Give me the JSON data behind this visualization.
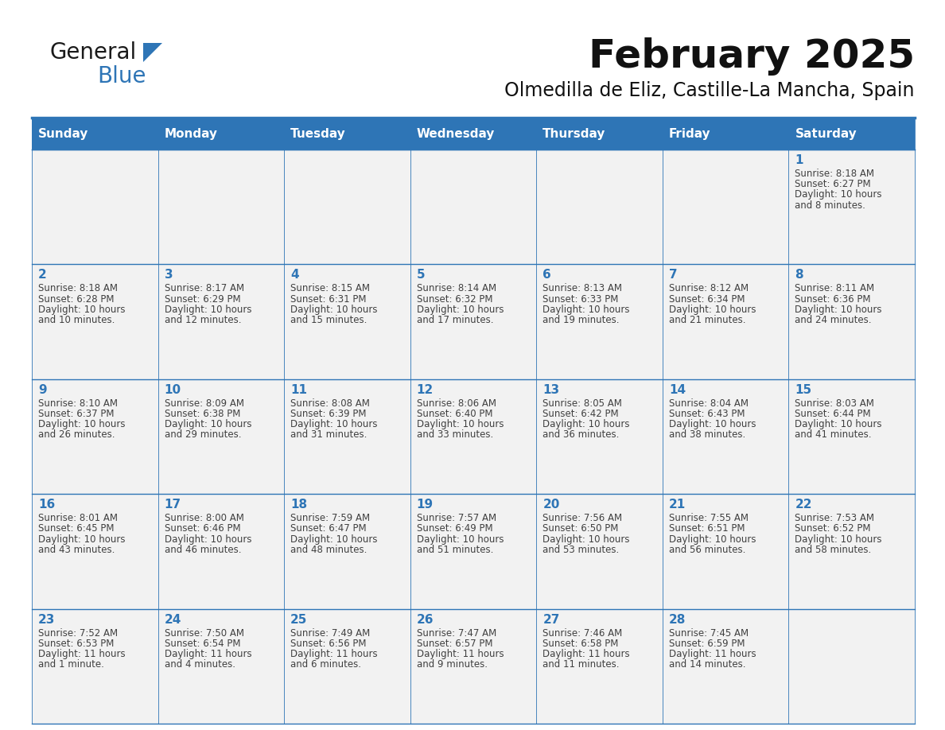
{
  "title": "February 2025",
  "subtitle": "Olmedilla de Eliz, Castille-La Mancha, Spain",
  "header_bg": "#2E75B6",
  "header_text_color": "#FFFFFF",
  "cell_bg": "#F2F2F2",
  "day_number_color": "#2E75B6",
  "text_color": "#404040",
  "line_color": "#2E75B6",
  "days_of_week": [
    "Sunday",
    "Monday",
    "Tuesday",
    "Wednesday",
    "Thursday",
    "Friday",
    "Saturday"
  ],
  "weeks": [
    [
      {
        "day": null,
        "sunrise": null,
        "sunset": null,
        "daylight_line1": null,
        "daylight_line2": null
      },
      {
        "day": null,
        "sunrise": null,
        "sunset": null,
        "daylight_line1": null,
        "daylight_line2": null
      },
      {
        "day": null,
        "sunrise": null,
        "sunset": null,
        "daylight_line1": null,
        "daylight_line2": null
      },
      {
        "day": null,
        "sunrise": null,
        "sunset": null,
        "daylight_line1": null,
        "daylight_line2": null
      },
      {
        "day": null,
        "sunrise": null,
        "sunset": null,
        "daylight_line1": null,
        "daylight_line2": null
      },
      {
        "day": null,
        "sunrise": null,
        "sunset": null,
        "daylight_line1": null,
        "daylight_line2": null
      },
      {
        "day": 1,
        "sunrise": "8:18 AM",
        "sunset": "6:27 PM",
        "daylight_line1": "10 hours",
        "daylight_line2": "and 8 minutes."
      }
    ],
    [
      {
        "day": 2,
        "sunrise": "8:18 AM",
        "sunset": "6:28 PM",
        "daylight_line1": "10 hours",
        "daylight_line2": "and 10 minutes."
      },
      {
        "day": 3,
        "sunrise": "8:17 AM",
        "sunset": "6:29 PM",
        "daylight_line1": "10 hours",
        "daylight_line2": "and 12 minutes."
      },
      {
        "day": 4,
        "sunrise": "8:15 AM",
        "sunset": "6:31 PM",
        "daylight_line1": "10 hours",
        "daylight_line2": "and 15 minutes."
      },
      {
        "day": 5,
        "sunrise": "8:14 AM",
        "sunset": "6:32 PM",
        "daylight_line1": "10 hours",
        "daylight_line2": "and 17 minutes."
      },
      {
        "day": 6,
        "sunrise": "8:13 AM",
        "sunset": "6:33 PM",
        "daylight_line1": "10 hours",
        "daylight_line2": "and 19 minutes."
      },
      {
        "day": 7,
        "sunrise": "8:12 AM",
        "sunset": "6:34 PM",
        "daylight_line1": "10 hours",
        "daylight_line2": "and 21 minutes."
      },
      {
        "day": 8,
        "sunrise": "8:11 AM",
        "sunset": "6:36 PM",
        "daylight_line1": "10 hours",
        "daylight_line2": "and 24 minutes."
      }
    ],
    [
      {
        "day": 9,
        "sunrise": "8:10 AM",
        "sunset": "6:37 PM",
        "daylight_line1": "10 hours",
        "daylight_line2": "and 26 minutes."
      },
      {
        "day": 10,
        "sunrise": "8:09 AM",
        "sunset": "6:38 PM",
        "daylight_line1": "10 hours",
        "daylight_line2": "and 29 minutes."
      },
      {
        "day": 11,
        "sunrise": "8:08 AM",
        "sunset": "6:39 PM",
        "daylight_line1": "10 hours",
        "daylight_line2": "and 31 minutes."
      },
      {
        "day": 12,
        "sunrise": "8:06 AM",
        "sunset": "6:40 PM",
        "daylight_line1": "10 hours",
        "daylight_line2": "and 33 minutes."
      },
      {
        "day": 13,
        "sunrise": "8:05 AM",
        "sunset": "6:42 PM",
        "daylight_line1": "10 hours",
        "daylight_line2": "and 36 minutes."
      },
      {
        "day": 14,
        "sunrise": "8:04 AM",
        "sunset": "6:43 PM",
        "daylight_line1": "10 hours",
        "daylight_line2": "and 38 minutes."
      },
      {
        "day": 15,
        "sunrise": "8:03 AM",
        "sunset": "6:44 PM",
        "daylight_line1": "10 hours",
        "daylight_line2": "and 41 minutes."
      }
    ],
    [
      {
        "day": 16,
        "sunrise": "8:01 AM",
        "sunset": "6:45 PM",
        "daylight_line1": "10 hours",
        "daylight_line2": "and 43 minutes."
      },
      {
        "day": 17,
        "sunrise": "8:00 AM",
        "sunset": "6:46 PM",
        "daylight_line1": "10 hours",
        "daylight_line2": "and 46 minutes."
      },
      {
        "day": 18,
        "sunrise": "7:59 AM",
        "sunset": "6:47 PM",
        "daylight_line1": "10 hours",
        "daylight_line2": "and 48 minutes."
      },
      {
        "day": 19,
        "sunrise": "7:57 AM",
        "sunset": "6:49 PM",
        "daylight_line1": "10 hours",
        "daylight_line2": "and 51 minutes."
      },
      {
        "day": 20,
        "sunrise": "7:56 AM",
        "sunset": "6:50 PM",
        "daylight_line1": "10 hours",
        "daylight_line2": "and 53 minutes."
      },
      {
        "day": 21,
        "sunrise": "7:55 AM",
        "sunset": "6:51 PM",
        "daylight_line1": "10 hours",
        "daylight_line2": "and 56 minutes."
      },
      {
        "day": 22,
        "sunrise": "7:53 AM",
        "sunset": "6:52 PM",
        "daylight_line1": "10 hours",
        "daylight_line2": "and 58 minutes."
      }
    ],
    [
      {
        "day": 23,
        "sunrise": "7:52 AM",
        "sunset": "6:53 PM",
        "daylight_line1": "11 hours",
        "daylight_line2": "and 1 minute."
      },
      {
        "day": 24,
        "sunrise": "7:50 AM",
        "sunset": "6:54 PM",
        "daylight_line1": "11 hours",
        "daylight_line2": "and 4 minutes."
      },
      {
        "day": 25,
        "sunrise": "7:49 AM",
        "sunset": "6:56 PM",
        "daylight_line1": "11 hours",
        "daylight_line2": "and 6 minutes."
      },
      {
        "day": 26,
        "sunrise": "7:47 AM",
        "sunset": "6:57 PM",
        "daylight_line1": "11 hours",
        "daylight_line2": "and 9 minutes."
      },
      {
        "day": 27,
        "sunrise": "7:46 AM",
        "sunset": "6:58 PM",
        "daylight_line1": "11 hours",
        "daylight_line2": "and 11 minutes."
      },
      {
        "day": 28,
        "sunrise": "7:45 AM",
        "sunset": "6:59 PM",
        "daylight_line1": "11 hours",
        "daylight_line2": "and 14 minutes."
      },
      {
        "day": null,
        "sunrise": null,
        "sunset": null,
        "daylight_line1": null,
        "daylight_line2": null
      }
    ]
  ],
  "logo_text1": "General",
  "logo_text2": "Blue",
  "logo_color1": "#1a1a1a",
  "logo_color2": "#2E75B6",
  "title_fontsize": 36,
  "subtitle_fontsize": 17,
  "header_fontsize": 11,
  "day_num_fontsize": 11,
  "cell_text_fontsize": 8.5
}
